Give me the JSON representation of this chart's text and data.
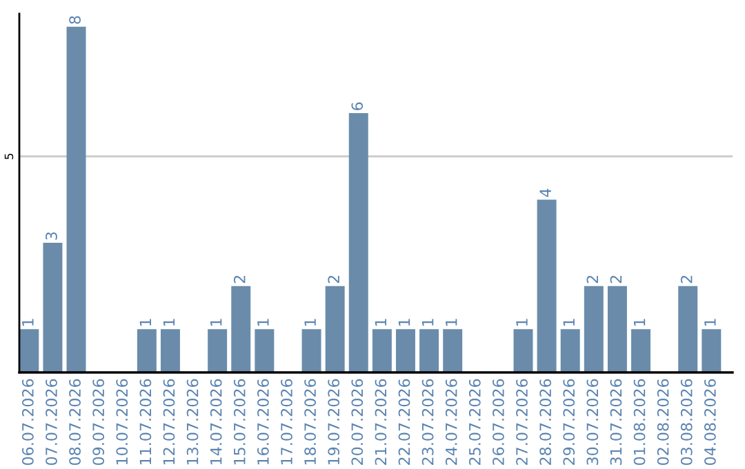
{
  "chart_data": {
    "type": "bar",
    "categories": [
      "06.07.2026",
      "07.07.2026",
      "08.07.2026",
      "09.07.2026",
      "10.07.2026",
      "11.07.2026",
      "12.07.2026",
      "13.07.2026",
      "14.07.2026",
      "15.07.2026",
      "16.07.2026",
      "17.07.2026",
      "18.07.2026",
      "19.07.2026",
      "20.07.2026",
      "21.07.2026",
      "22.07.2026",
      "23.07.2026",
      "24.07.2026",
      "25.07.2026",
      "26.07.2026",
      "27.07.2026",
      "28.07.2026",
      "29.07.2026",
      "30.07.2026",
      "31.07.2026",
      "01.08.2026",
      "02.08.2026",
      "03.08.2026",
      "04.08.2026"
    ],
    "values": [
      1,
      3,
      8,
      0,
      0,
      1,
      1,
      0,
      1,
      2,
      1,
      0,
      1,
      2,
      6,
      1,
      1,
      1,
      1,
      0,
      0,
      1,
      4,
      1,
      2,
      2,
      1,
      0,
      2,
      1
    ],
    "value_labels": [
      "1",
      "3",
      "8",
      null,
      null,
      "1",
      "1",
      null,
      "1",
      "2",
      "1",
      null,
      "1",
      "2",
      "6",
      "1",
      "1",
      "1",
      "1",
      null,
      null,
      "1",
      "4",
      "1",
      "2",
      "2",
      "1",
      null,
      "2",
      "1"
    ],
    "color": "#6a8caa",
    "ylim": [
      0,
      8.3
    ],
    "yticks": [
      5
    ],
    "grid": "y",
    "legend": false
  }
}
